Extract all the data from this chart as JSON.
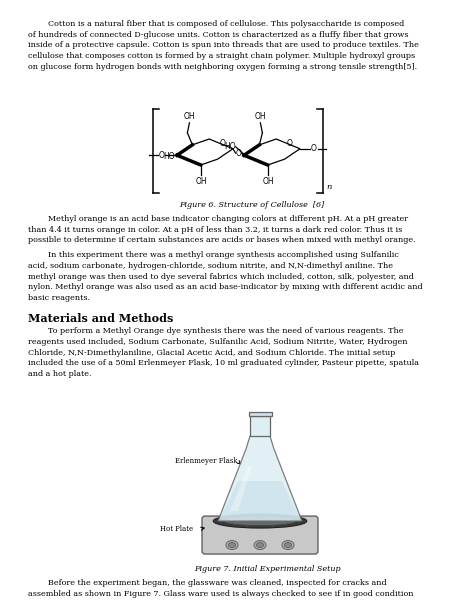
{
  "background_color": "#ffffff",
  "fc": "#000000",
  "fs_body": 5.8,
  "fs_heading": 8.0,
  "fs_caption": 5.8,
  "fs_small": 5.0,
  "ml": 28,
  "mr": 28,
  "paragraph1": "        Cotton is a natural fiber that is composed of cellulose. This polysaccharide is composed\nof hundreds of connected D-glucose units. Cotton is characterized as a fluffy fiber that grows\ninside of a protective capsule. Cotton is spun into threads that are used to produce textiles. The\ncellulose that composes cotton is formed by a straight chain polymer. Multiple hydroxyl groups\non glucose form hydrogen bonds with neighboring oxygen forming a strong tensile strength[5].",
  "fig6_caption": "Figure 6. Structure of Cellulose  [6]",
  "paragraph2_a": "        Methyl orange is an acid base indicator changing colors at different pH. At a pH greater\nthan 4.4 it turns orange in color. At a pH of less than 3.2, it turns a dark red color. Thus it is\npossible to determine if certain substances are acids or bases when mixed with methyl orange.",
  "paragraph2_b": "        In this experiment there was a methyl orange synthesis accomplished using Sulfanilic\nacid, sodium carbonate, hydrogen-chloride, sodium nitrite, and N,N-dimethyl aniline. The\nmethyl orange was then used to dye several fabrics which included, cotton, silk, polyester, and\nnylon. Methyl orange was also used as an acid base-indicator by mixing with different acidic and\nbasic reagents.",
  "section_heading": "Materials and Methods",
  "paragraph3": "        To perform a Methyl Orange dye synthesis there was the need of various reagents. The\nreagents used included, Sodium Carbonate, Sulfanilic Acid, Sodium Nitrite, Water, Hydrogen\nChloride, N,N-Dimethylaniline, Glacial Acetic Acid, and Sodium Chloride. The initial setup\nincluded the use of a 50ml Erlenmeyer Flask, 10 ml graduated cylinder, Pasteur pipette, spatula\nand a hot plate.",
  "fig7_caption": "Figure 7. Initial Experimental Setup",
  "paragraph4": "        Before the experiment began, the glassware was cleaned, inspected for cracks and\nassembled as shown in Figure 7. Glass ware used is always checked to see if in good condition",
  "erlenmeyer_label": "Erlenmeyer Flask",
  "hotplate_label": "Hot Plate"
}
